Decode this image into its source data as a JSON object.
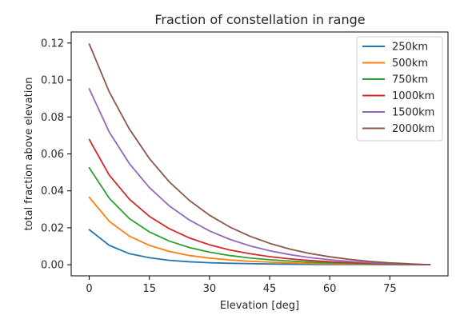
{
  "chart_data": {
    "type": "line",
    "title": "Fraction of constellation in range",
    "xlabel": "Elevation [deg]",
    "ylabel": "total fraction above elevation",
    "xlim": [
      -4.5,
      89.5
    ],
    "ylim": [
      -0.006,
      0.126
    ],
    "xticks": [
      0,
      15,
      30,
      45,
      60,
      75
    ],
    "xtick_labels": [
      "0",
      "15",
      "30",
      "45",
      "60",
      "75"
    ],
    "yticks": [
      0.0,
      0.02,
      0.04,
      0.06,
      0.08,
      0.1,
      0.12
    ],
    "ytick_labels": [
      "0.00",
      "0.02",
      "0.04",
      "0.06",
      "0.08",
      "0.10",
      "0.12"
    ],
    "grid": false,
    "legend_position": "top-right",
    "x": [
      0,
      5,
      10,
      15,
      20,
      25,
      30,
      35,
      40,
      45,
      50,
      55,
      60,
      65,
      70,
      75,
      80,
      85
    ],
    "series": [
      {
        "name": "250km",
        "color": "#1f77b4",
        "values": [
          0.019,
          0.0105,
          0.006,
          0.0038,
          0.0024,
          0.0016,
          0.0011,
          0.0008,
          0.0006,
          0.0004,
          0.0003,
          0.0002,
          0.00015,
          0.0001,
          0.0001,
          5e-05,
          3e-05,
          0.0
        ]
      },
      {
        "name": "500km",
        "color": "#ff7f0e",
        "values": [
          0.0365,
          0.0235,
          0.0155,
          0.0105,
          0.0072,
          0.005,
          0.0036,
          0.0026,
          0.0019,
          0.0014,
          0.001,
          0.0007,
          0.0005,
          0.0004,
          0.0002,
          0.0001,
          5e-05,
          0.0
        ]
      },
      {
        "name": "750km",
        "color": "#2ca02c",
        "values": [
          0.0525,
          0.036,
          0.025,
          0.0178,
          0.0128,
          0.0093,
          0.0068,
          0.005,
          0.0037,
          0.0027,
          0.002,
          0.0014,
          0.001,
          0.0007,
          0.0004,
          0.0002,
          0.0001,
          0.0
        ]
      },
      {
        "name": "1000km",
        "color": "#d62728",
        "values": [
          0.0678,
          0.0485,
          0.0355,
          0.0262,
          0.0195,
          0.0145,
          0.0108,
          0.008,
          0.006,
          0.0044,
          0.0032,
          0.0023,
          0.0016,
          0.0011,
          0.0007,
          0.0004,
          0.0002,
          0.0
        ]
      },
      {
        "name": "1500km",
        "color": "#9467bd",
        "values": [
          0.0952,
          0.0718,
          0.0548,
          0.0418,
          0.0318,
          0.0242,
          0.0183,
          0.0138,
          0.0103,
          0.0076,
          0.0055,
          0.0039,
          0.0027,
          0.0018,
          0.0011,
          0.0006,
          0.0003,
          0.0
        ]
      },
      {
        "name": "2000km",
        "color": "#8c564b",
        "values": [
          0.1195,
          0.0935,
          0.0735,
          0.0575,
          0.0448,
          0.0348,
          0.0268,
          0.0205,
          0.0155,
          0.0116,
          0.0085,
          0.0061,
          0.0043,
          0.0029,
          0.0018,
          0.001,
          0.0005,
          0.0
        ]
      }
    ]
  }
}
